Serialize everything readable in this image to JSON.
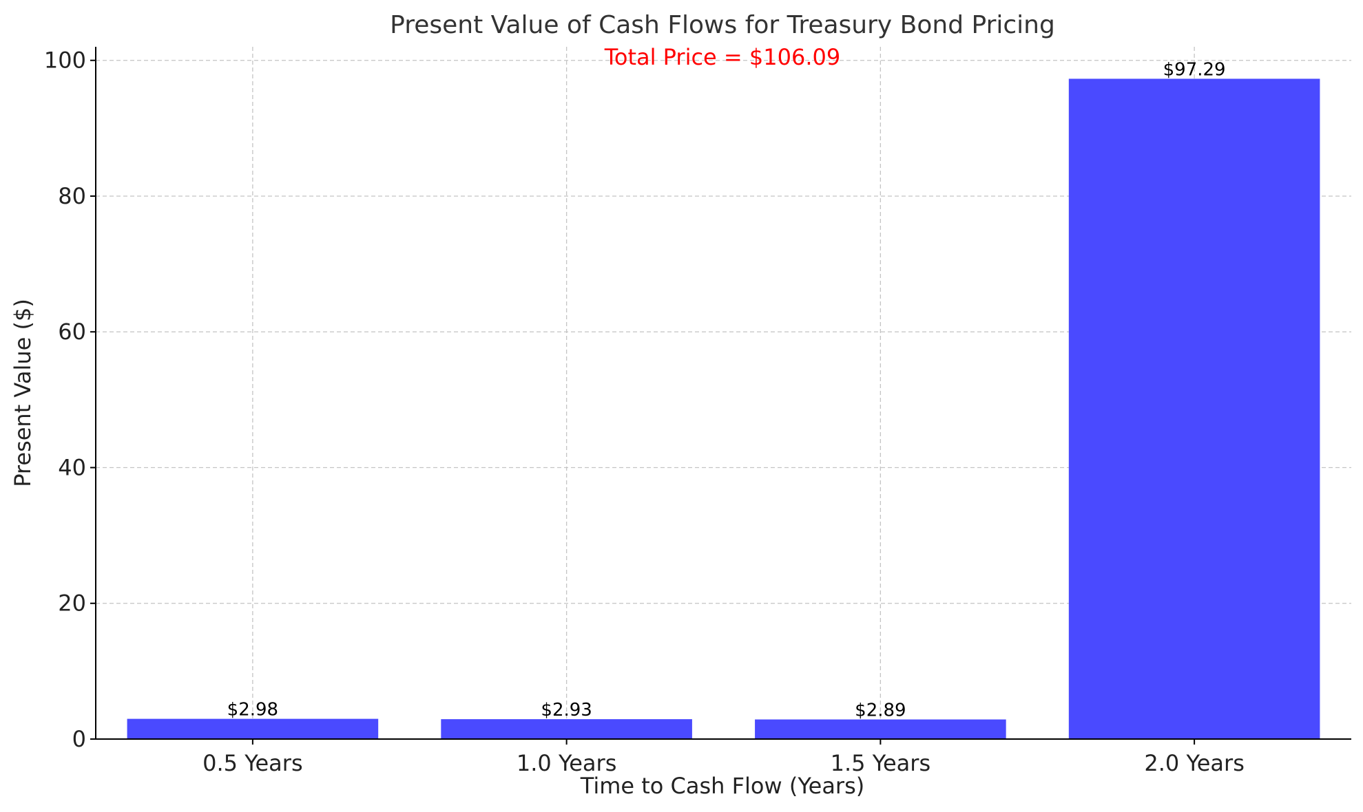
{
  "chart_data": {
    "type": "bar",
    "title": "Present Value of Cash Flows for Treasury Bond Pricing",
    "xlabel": "Time to Cash Flow (Years)",
    "ylabel": "Present Value ($)",
    "categories": [
      "0.5 Years",
      "1.0 Years",
      "1.5 Years",
      "2.0 Years"
    ],
    "values": [
      2.98,
      2.93,
      2.89,
      97.29
    ],
    "value_labels": [
      "$2.98",
      "$2.93",
      "$2.89",
      "$97.29"
    ],
    "annotation": "Total Price = $106.09",
    "ylim": [
      0,
      102
    ],
    "yticks": [
      0,
      20,
      40,
      60,
      80,
      100
    ],
    "grid": true,
    "colors": {
      "bar": "#4a4aff",
      "annotation": "#ff0000"
    }
  }
}
